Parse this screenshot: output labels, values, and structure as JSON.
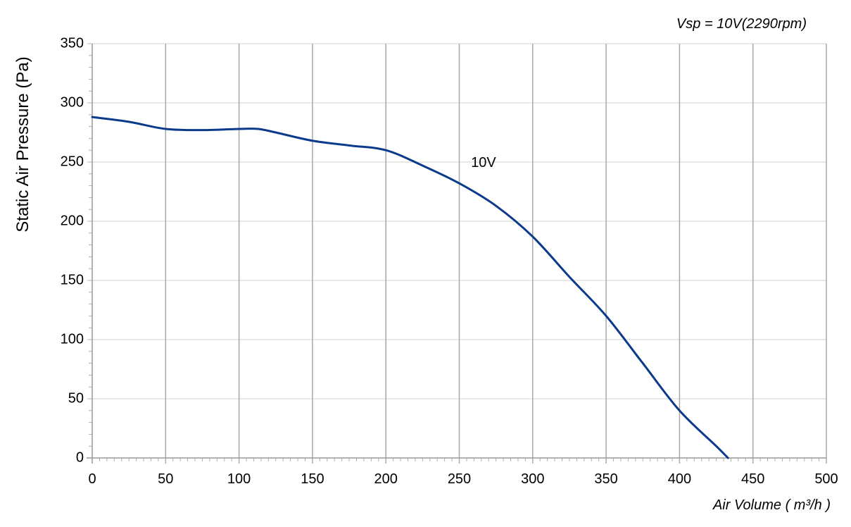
{
  "chart_data": {
    "type": "line",
    "title": "",
    "annotation": "Vsp = 10V(2290rpm)",
    "xlabel": "Air Volume ( m³/h )",
    "ylabel": "Static Air Pressure  (Pa)",
    "xlim": [
      0,
      500
    ],
    "ylim": [
      0,
      350
    ],
    "x_ticks": [
      0,
      50,
      100,
      150,
      200,
      250,
      300,
      350,
      400,
      450,
      500
    ],
    "y_ticks": [
      0,
      50,
      100,
      150,
      200,
      250,
      300,
      350
    ],
    "grid": true,
    "colors": {
      "line": "#0b3a8c",
      "grid": "#bdbdbd",
      "axis": "#999999"
    },
    "series": [
      {
        "name": "10V",
        "x": [
          0,
          25,
          50,
          75,
          100,
          113,
          125,
          150,
          175,
          200,
          225,
          250,
          275,
          300,
          325,
          350,
          375,
          400,
          425,
          433
        ],
        "y": [
          288,
          284,
          278,
          277,
          278,
          278,
          275,
          268,
          264,
          260,
          247,
          232,
          213,
          187,
          153,
          120,
          80,
          40,
          10,
          0
        ]
      }
    ],
    "series_label_pos": {
      "x": 258,
      "y": 250
    }
  }
}
